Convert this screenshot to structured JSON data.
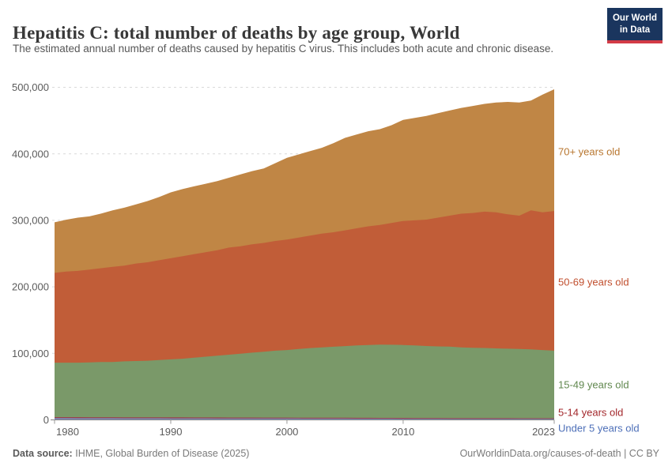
{
  "header": {
    "title": "Hepatitis C: total number of deaths by age group, World",
    "subtitle": "The estimated annual number of deaths caused by hepatitis C virus. This includes both acute and chronic disease."
  },
  "logo": {
    "line1": "Our World",
    "line2": "in Data",
    "bg_color": "#1A355E",
    "accent_color": "#D33B46"
  },
  "footer": {
    "data_source_label": "Data source:",
    "data_source_value": "IHME, Global Burden of Disease (2025)",
    "right_text": "OurWorldinData.org/causes-of-death | CC BY"
  },
  "chart_data": {
    "type": "area",
    "stacked": true,
    "title": "Hepatitis C: total number of deaths by age group, World",
    "xlabel": "",
    "ylabel": "",
    "ylim": [
      0,
      500000
    ],
    "y_ticks": [
      0,
      100000,
      200000,
      300000,
      400000,
      500000
    ],
    "y_tick_labels": [
      "0",
      "100,000",
      "200,000",
      "300,000",
      "400,000",
      "500,000"
    ],
    "x_ticks": [
      1980,
      1990,
      2000,
      2010,
      2023
    ],
    "grid": "dashed-horizontal",
    "legend_position": "right-inline-labels",
    "x": [
      1980,
      1981,
      1982,
      1983,
      1984,
      1985,
      1986,
      1987,
      1988,
      1989,
      1990,
      1991,
      1992,
      1993,
      1994,
      1995,
      1996,
      1997,
      1998,
      1999,
      2000,
      2001,
      2002,
      2003,
      2004,
      2005,
      2006,
      2007,
      2008,
      2009,
      2010,
      2011,
      2012,
      2013,
      2014,
      2015,
      2016,
      2017,
      2018,
      2019,
      2020,
      2021,
      2022,
      2023
    ],
    "series": [
      {
        "name": "Under 5 years old",
        "color": "#7D8CBB",
        "label_color": "#4D6FB8",
        "values": [
          2600,
          2570,
          2540,
          2510,
          2480,
          2450,
          2420,
          2390,
          2360,
          2330,
          2300,
          2270,
          2240,
          2210,
          2180,
          2150,
          2120,
          2090,
          2060,
          2030,
          2000,
          1970,
          1940,
          1910,
          1880,
          1850,
          1820,
          1790,
          1760,
          1730,
          1700,
          1670,
          1640,
          1610,
          1580,
          1560,
          1540,
          1520,
          1500,
          1480,
          1460,
          1440,
          1420,
          1400
        ]
      },
      {
        "name": "5-14 years old",
        "color": "#97434B",
        "label_color": "#A3282C",
        "values": [
          1600,
          1590,
          1580,
          1570,
          1560,
          1550,
          1540,
          1530,
          1520,
          1510,
          1500,
          1490,
          1480,
          1470,
          1460,
          1450,
          1440,
          1430,
          1420,
          1410,
          1400,
          1380,
          1360,
          1340,
          1330,
          1310,
          1290,
          1280,
          1260,
          1250,
          1230,
          1220,
          1200,
          1190,
          1170,
          1160,
          1150,
          1130,
          1120,
          1110,
          1090,
          1080,
          1060,
          1050
        ]
      },
      {
        "name": "15-49 years old",
        "color": "#7A9969",
        "label_color": "#61884F",
        "values": [
          81800,
          81800,
          81900,
          82400,
          83000,
          83000,
          84000,
          84600,
          85100,
          86200,
          87200,
          88200,
          89800,
          91300,
          92900,
          94400,
          95900,
          97500,
          99000,
          100600,
          101600,
          103200,
          104700,
          105800,
          106800,
          107800,
          108900,
          109400,
          110000,
          110000,
          109600,
          109100,
          108200,
          107700,
          107300,
          106300,
          105800,
          105400,
          104900,
          104400,
          104000,
          103500,
          102500,
          101600
        ]
      },
      {
        "name": "50-69 years old",
        "color": "#C15D38",
        "label_color": "#C14F2E",
        "values": [
          135000,
          137000,
          138000,
          139500,
          141000,
          143000,
          144000,
          146500,
          148000,
          150000,
          152000,
          154000,
          155500,
          157000,
          158500,
          161000,
          161500,
          163000,
          163500,
          165000,
          166000,
          167500,
          169000,
          171000,
          172000,
          174000,
          176000,
          178500,
          180000,
          183000,
          186500,
          188000,
          190000,
          193500,
          197000,
          201000,
          202500,
          205000,
          204500,
          202000,
          200500,
          209000,
          207000,
          210000
        ]
      },
      {
        "name": "70+ years old",
        "color": "#C08645",
        "label_color": "#B8762F",
        "values": [
          76000,
          78000,
          80000,
          80000,
          82000,
          85000,
          87000,
          89000,
          92000,
          95000,
          99000,
          101000,
          102000,
          103000,
          104000,
          105000,
          108000,
          110000,
          112000,
          117000,
          123000,
          125000,
          127000,
          129000,
          134000,
          139000,
          141000,
          143000,
          144000,
          147000,
          152000,
          154000,
          156000,
          157000,
          158000,
          159000,
          161000,
          162000,
          165000,
          169000,
          170000,
          165000,
          177000,
          183000
        ]
      }
    ]
  }
}
